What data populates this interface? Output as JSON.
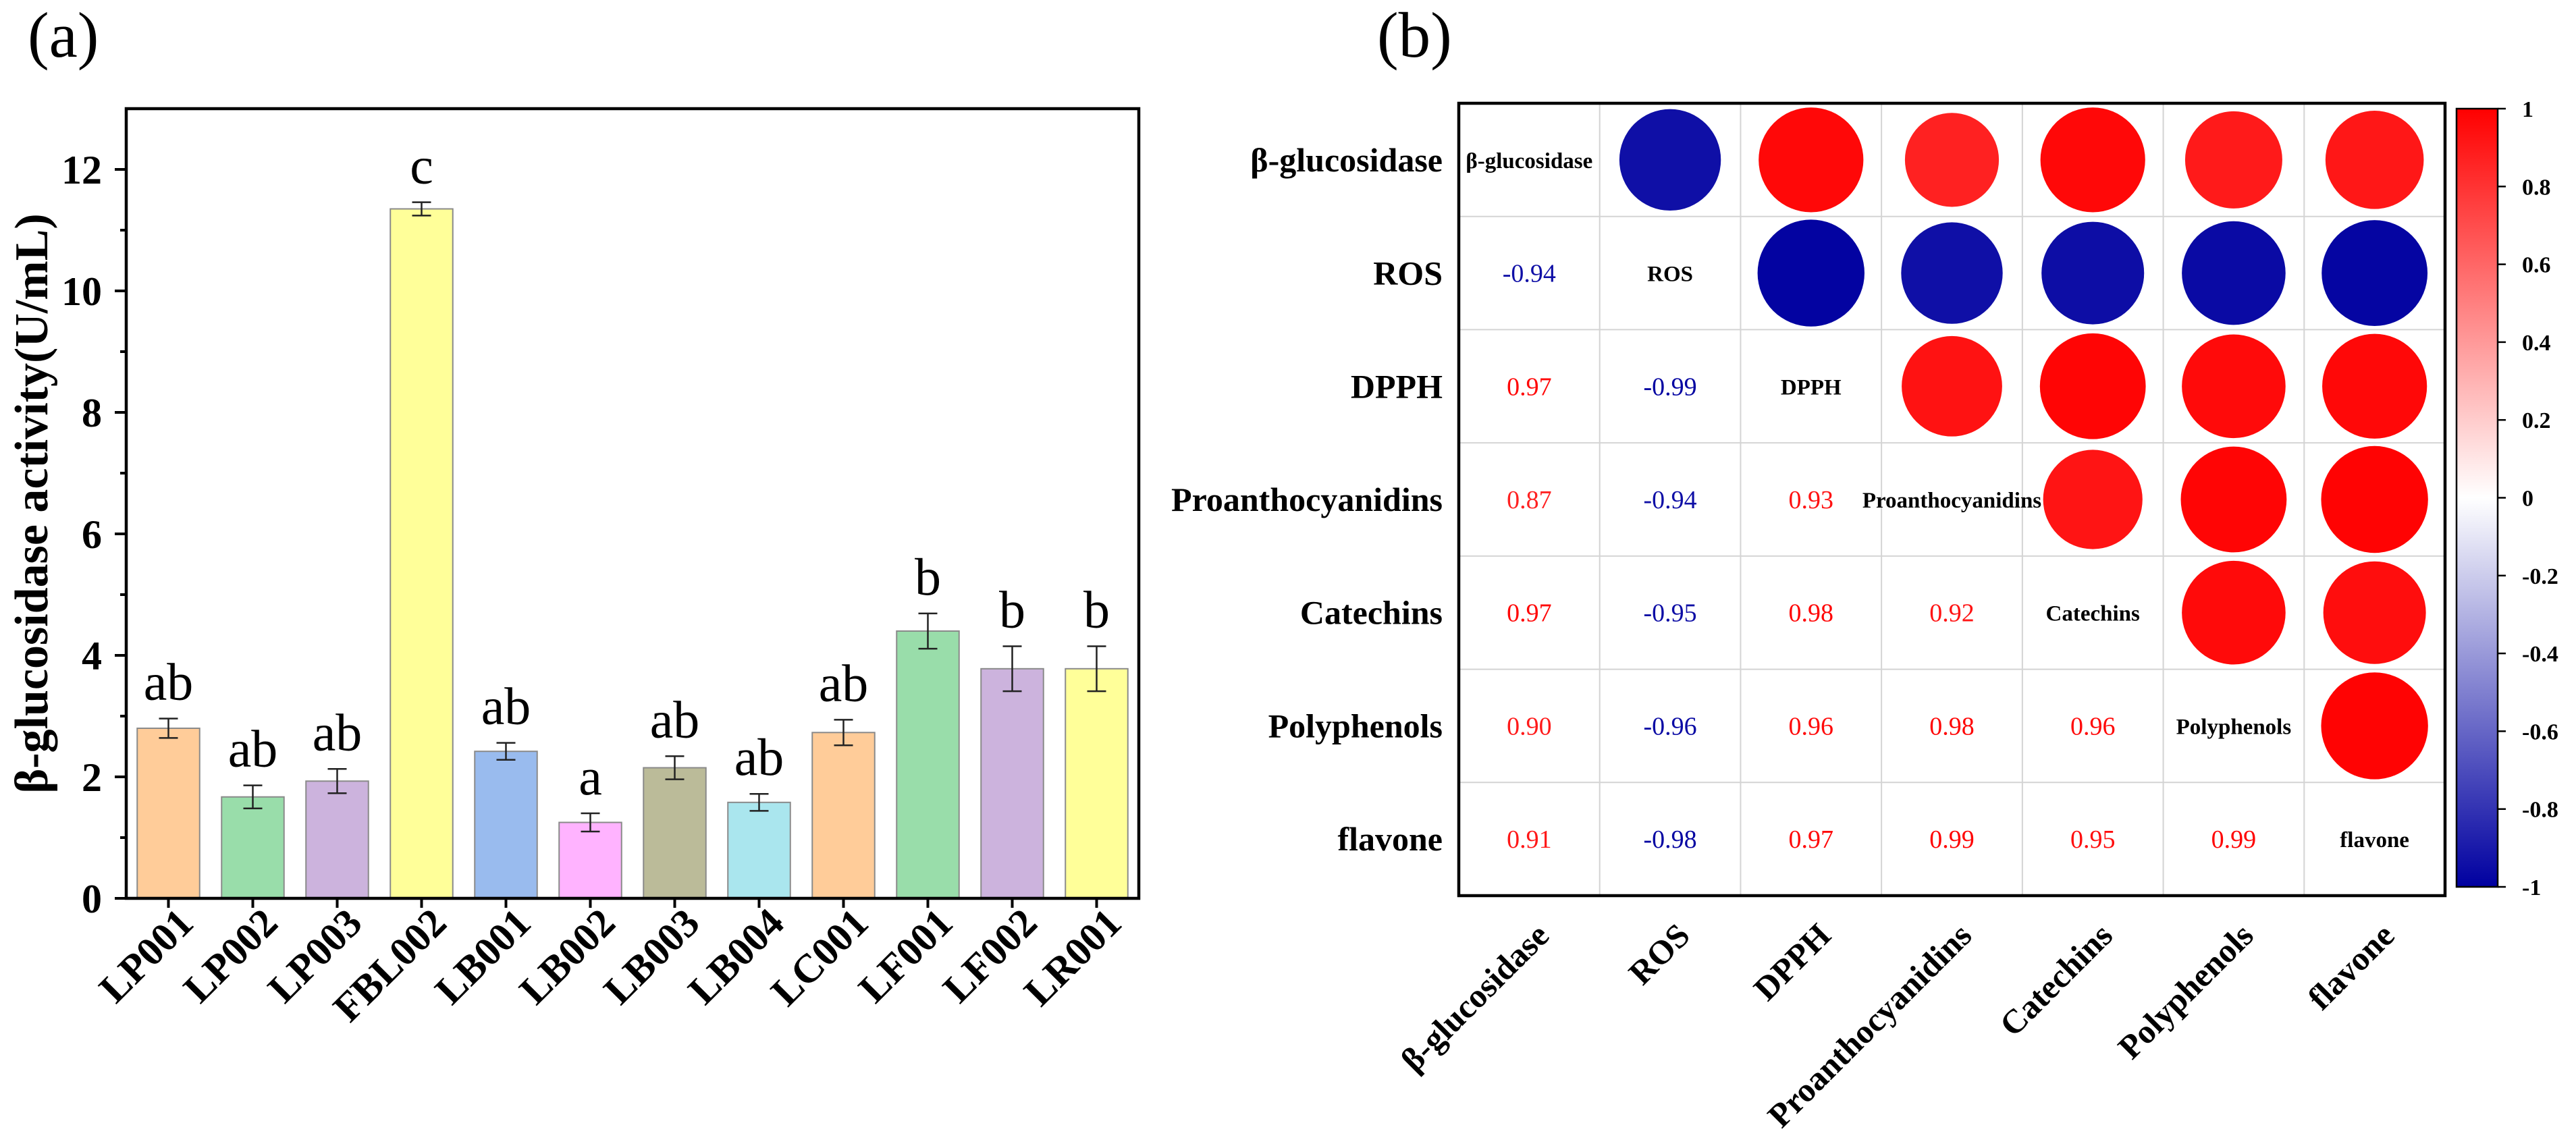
{
  "chart_data": [
    {
      "type": "bar",
      "panel_label": "(a)",
      "categories": [
        "LP001",
        "LP002",
        "LP003",
        "FBL002",
        "LB001",
        "LB002",
        "LB003",
        "LB004",
        "LC001",
        "LF001",
        "LF002",
        "LR001"
      ],
      "values": [
        2.8,
        1.67,
        1.93,
        11.35,
        2.42,
        1.25,
        2.15,
        1.58,
        2.73,
        4.4,
        3.78,
        3.78
      ],
      "errors": [
        0.16,
        0.19,
        0.2,
        0.11,
        0.14,
        0.15,
        0.19,
        0.14,
        0.21,
        0.29,
        0.37,
        0.37
      ],
      "significance": [
        "ab",
        "ab",
        "ab",
        "c",
        "ab",
        "a",
        "ab",
        "ab",
        "ab",
        "b",
        "b",
        "b"
      ],
      "bar_colors": [
        "#FFCC99",
        "#99DDAA",
        "#CCB3DD",
        "#FFFF99",
        "#99BBEE",
        "#FFB3FF",
        "#BBBB99",
        "#AAE6EE",
        "#FFCC99",
        "#99DDAA",
        "#CCB3DD",
        "#FFFF99"
      ],
      "ylabel": "β-glucosidase activity(U/mL)",
      "ylim": [
        0,
        13
      ],
      "yticks": [
        0,
        2,
        4,
        6,
        8,
        10,
        12
      ],
      "grid": false
    },
    {
      "type": "heatmap",
      "panel_label": "(b)",
      "variables": [
        "β-glucosidase",
        "ROS",
        "DPPH",
        "Proanthocyanidins",
        "Catechins",
        "Polyphenols",
        "flavone"
      ],
      "correlations_lower": [
        [],
        [
          "-0.94"
        ],
        [
          "0.97",
          "-0.99"
        ],
        [
          "0.87",
          "-0.94",
          "0.93"
        ],
        [
          "0.97",
          "-0.95",
          "0.98",
          "0.92"
        ],
        [
          "0.90",
          "-0.96",
          "0.96",
          "0.98",
          "0.96"
        ],
        [
          "0.91",
          "-0.98",
          "0.97",
          "0.99",
          "0.95",
          "0.99"
        ]
      ],
      "colorbar": {
        "range": [
          -1,
          1
        ],
        "ticks": [
          "1",
          "0.8",
          "0.6",
          "0.4",
          "0.2",
          "0",
          "-0.2",
          "-0.4",
          "-0.6",
          "-0.8",
          "-1"
        ],
        "colors": {
          "negative": "#0000A0",
          "zero": "#FFFFFF",
          "positive": "#FF0000"
        }
      },
      "grid": true
    }
  ]
}
